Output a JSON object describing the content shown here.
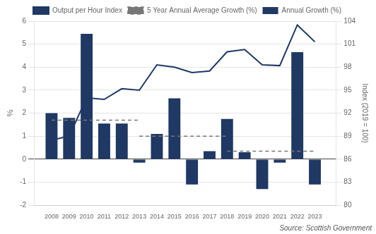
{
  "chart_data": {
    "type": "bar",
    "x": [
      2008,
      2009,
      2010,
      2011,
      2012,
      2013,
      2014,
      2015,
      2016,
      2017,
      2018,
      2019,
      2020,
      2021,
      2022,
      2023
    ],
    "series": [
      {
        "name": "Annual Growth (%)",
        "type": "bar",
        "color": "#1f3864",
        "values": [
          2.0,
          1.8,
          5.45,
          1.55,
          1.55,
          -0.15,
          1.1,
          2.65,
          -1.1,
          0.35,
          1.75,
          0.3,
          -1.3,
          -0.15,
          4.65,
          -1.1
        ]
      },
      {
        "name": "5 Year Annual Average Growth (%)",
        "type": "line",
        "color": "#777777",
        "line_style": "dashed",
        "segments": [
          {
            "x_start": 2008,
            "x_end": 2013,
            "y": 1.7
          },
          {
            "x_start": 2013,
            "x_end": 2018,
            "y": 1.0
          },
          {
            "x_start": 2018,
            "x_end": 2023,
            "y": 0.35
          }
        ]
      },
      {
        "name": "Output per Hour Index",
        "type": "line",
        "color": "#1f3864",
        "line_style": "solid",
        "axis": "y2",
        "values": [
          88.5,
          89.0,
          94.0,
          93.8,
          95.2,
          95.0,
          98.3,
          98.0,
          97.3,
          97.5,
          100.0,
          100.3,
          98.3,
          98.2,
          103.5,
          101.3
        ]
      }
    ],
    "ylabel": "%",
    "y2label": "Index (2019 = 100)",
    "xlim": [
      2007.0,
      2024.2
    ],
    "xticks": [
      2008,
      2009,
      2010,
      2011,
      2012,
      2013,
      2014,
      2015,
      2016,
      2017,
      2018,
      2019,
      2020,
      2021,
      2022,
      2023
    ],
    "ylim": [
      -2,
      6
    ],
    "yticks": [
      -2,
      -1,
      0,
      1,
      2,
      3,
      4,
      5,
      6
    ],
    "y2lim": [
      80,
      104
    ],
    "y2ticks": [
      80,
      83,
      86,
      89,
      92,
      95,
      98,
      101,
      104
    ],
    "grid": "y",
    "legend": "top",
    "annotations": [
      "Source: Scottish Government"
    ]
  }
}
